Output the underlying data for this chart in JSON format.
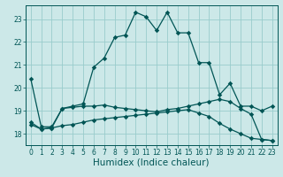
{
  "xlabel": "Humidex (Indice chaleur)",
  "background_color": "#cce8e8",
  "grid_color": "#99cccc",
  "line_color": "#005555",
  "xlim": [
    -0.5,
    23.5
  ],
  "ylim": [
    17.5,
    23.6
  ],
  "yticks": [
    18,
    19,
    20,
    21,
    22,
    23
  ],
  "xticks": [
    0,
    1,
    2,
    3,
    4,
    5,
    6,
    7,
    8,
    9,
    10,
    11,
    12,
    13,
    14,
    15,
    16,
    17,
    18,
    19,
    20,
    21,
    22,
    23
  ],
  "x": [
    0,
    1,
    2,
    3,
    4,
    5,
    6,
    7,
    8,
    9,
    10,
    11,
    12,
    13,
    14,
    15,
    16,
    17,
    18,
    19,
    20,
    21,
    22,
    23
  ],
  "line1": [
    20.4,
    18.3,
    18.3,
    19.1,
    19.2,
    19.3,
    20.9,
    21.3,
    22.2,
    22.3,
    23.3,
    23.1,
    22.5,
    23.3,
    22.4,
    22.4,
    21.1,
    21.1,
    19.7,
    20.2,
    19.2,
    19.2,
    19.0,
    19.2
  ],
  "line2": [
    18.5,
    18.2,
    18.25,
    19.1,
    19.15,
    19.2,
    19.2,
    19.25,
    19.15,
    19.1,
    19.05,
    19.0,
    18.95,
    19.05,
    19.1,
    19.2,
    19.3,
    19.4,
    19.5,
    19.4,
    19.1,
    18.85,
    17.75,
    17.7
  ],
  "line3": [
    18.4,
    18.2,
    18.25,
    18.35,
    18.4,
    18.5,
    18.6,
    18.65,
    18.7,
    18.75,
    18.8,
    18.85,
    18.9,
    18.95,
    19.0,
    19.05,
    18.9,
    18.75,
    18.45,
    18.2,
    18.0,
    17.8,
    17.75,
    17.7
  ],
  "marker_size": 2.8,
  "line_width": 0.9,
  "tick_fontsize": 5.5,
  "xlabel_fontsize": 7.5
}
